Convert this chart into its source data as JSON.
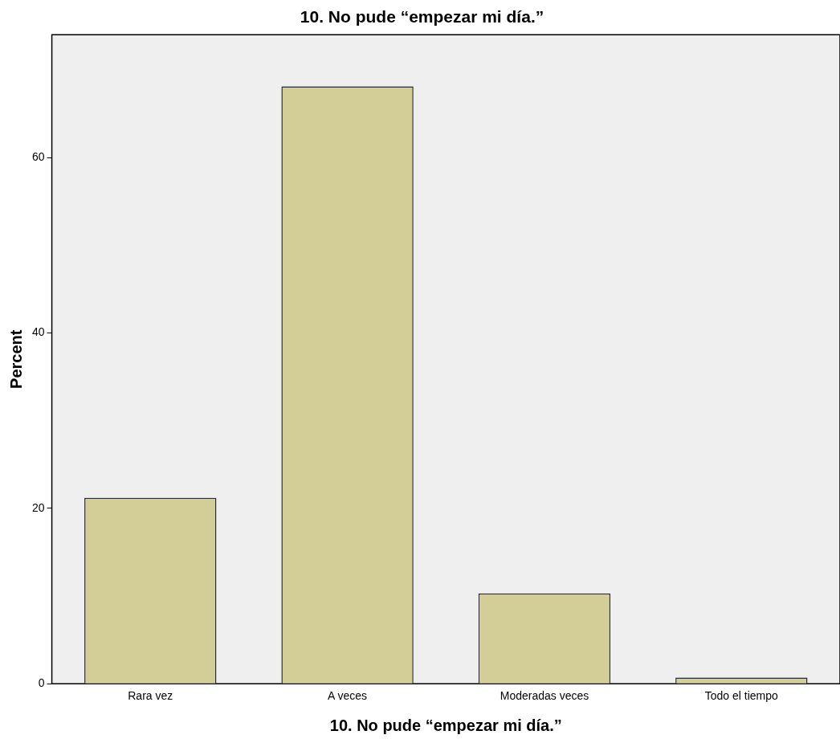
{
  "chart_data": {
    "type": "bar",
    "title": "10. No pude “empezar mi día.”",
    "xlabel": "10. No pude “empezar mi día.”",
    "ylabel": "Percent",
    "categories": [
      "Rara vez",
      "A veces",
      "Moderadas veces",
      "Todo el tiempo"
    ],
    "values": [
      21.2,
      68.1,
      10.3,
      0.7
    ],
    "color": "#d3ce97",
    "ylim": [
      0,
      74
    ],
    "yticks": [
      0,
      20,
      40,
      60
    ],
    "grid": false,
    "legend": false
  }
}
